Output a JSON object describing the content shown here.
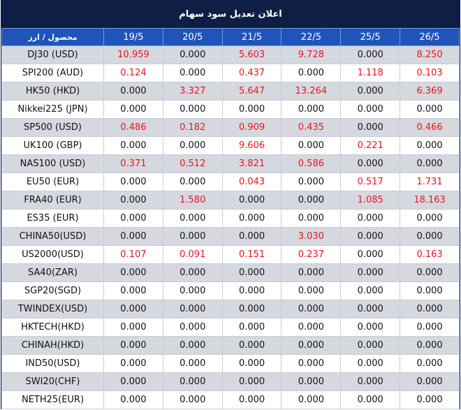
{
  "title": "اعلان تعدیل سود سهام",
  "table": {
    "headers": [
      "محصول / ارز",
      "19/5",
      "20/5",
      "21/5",
      "22/5",
      "25/5",
      "26/5"
    ],
    "rows": [
      {
        "symbol": "DJ30 (USD)",
        "values": [
          "10.959",
          "0.000",
          "5.603",
          "9.728",
          "0.000",
          "8.250"
        ],
        "highlight": [
          true,
          false,
          true,
          true,
          false,
          true
        ]
      },
      {
        "symbol": "SPI200 (AUD)",
        "values": [
          "0.124",
          "0.000",
          "0.437",
          "0.000",
          "1.118",
          "0.103"
        ],
        "highlight": [
          true,
          false,
          true,
          false,
          true,
          true
        ]
      },
      {
        "symbol": "HK50 (HKD)",
        "values": [
          "0.000",
          "3.327",
          "5.647",
          "13.264",
          "0.000",
          "6.369"
        ],
        "highlight": [
          false,
          true,
          true,
          true,
          false,
          true
        ]
      },
      {
        "symbol": "Nikkei225 (JPN)",
        "values": [
          "0.000",
          "0.000",
          "0.000",
          "0.000",
          "0.000",
          "0.000"
        ],
        "highlight": [
          false,
          false,
          false,
          false,
          false,
          false
        ]
      },
      {
        "symbol": "SP500 (USD)",
        "values": [
          "0.486",
          "0.182",
          "0.909",
          "0.435",
          "0.000",
          "0.466"
        ],
        "highlight": [
          true,
          true,
          true,
          true,
          false,
          true
        ]
      },
      {
        "symbol": "UK100 (GBP)",
        "values": [
          "0.000",
          "0.000",
          "9.606",
          "0.000",
          "0.221",
          "0.000"
        ],
        "highlight": [
          false,
          false,
          true,
          false,
          true,
          false
        ]
      },
      {
        "symbol": "NAS100 (USD)",
        "values": [
          "0.371",
          "0.512",
          "3.821",
          "0.586",
          "0.000",
          "0.000"
        ],
        "highlight": [
          true,
          true,
          true,
          true,
          false,
          false
        ]
      },
      {
        "symbol": "EU50 (EUR)",
        "values": [
          "0.000",
          "0.000",
          "0.043",
          "0.000",
          "0.517",
          "1.731"
        ],
        "highlight": [
          false,
          false,
          true,
          false,
          true,
          true
        ]
      },
      {
        "symbol": "FRA40 (EUR)",
        "values": [
          "0.000",
          "1.580",
          "0.000",
          "0.000",
          "1.085",
          "18.163"
        ],
        "highlight": [
          false,
          true,
          false,
          false,
          true,
          true
        ]
      },
      {
        "symbol": "ES35 (EUR)",
        "values": [
          "0.000",
          "0.000",
          "0.000",
          "0.000",
          "0.000",
          "0.000"
        ],
        "highlight": [
          false,
          false,
          false,
          false,
          false,
          false
        ]
      },
      {
        "symbol": "CHINA50(USD)",
        "values": [
          "0.000",
          "0.000",
          "0.000",
          "3.030",
          "0.000",
          "0.000"
        ],
        "highlight": [
          false,
          false,
          false,
          true,
          false,
          false
        ]
      },
      {
        "symbol": "US2000(USD)",
        "values": [
          "0.107",
          "0.091",
          "0.151",
          "0.237",
          "0.000",
          "0.163"
        ],
        "highlight": [
          true,
          true,
          true,
          true,
          false,
          true
        ]
      },
      {
        "symbol": "SA40(ZAR)",
        "values": [
          "0.000",
          "0.000",
          "0.000",
          "0.000",
          "0.000",
          "0.000"
        ],
        "highlight": [
          false,
          false,
          false,
          false,
          false,
          false
        ]
      },
      {
        "symbol": "SGP20(SGD)",
        "values": [
          "0.000",
          "0.000",
          "0.000",
          "0.000",
          "0.000",
          "0.000"
        ],
        "highlight": [
          false,
          false,
          false,
          false,
          false,
          false
        ]
      },
      {
        "symbol": "TWINDEX(USD)",
        "values": [
          "0.000",
          "0.000",
          "0.000",
          "0.000",
          "0.000",
          "0.000"
        ],
        "highlight": [
          false,
          false,
          false,
          false,
          false,
          false
        ]
      },
      {
        "symbol": "HKTECH(HKD)",
        "values": [
          "0.000",
          "0.000",
          "0.000",
          "0.000",
          "0.000",
          "0.000"
        ],
        "highlight": [
          false,
          false,
          false,
          false,
          false,
          false
        ]
      },
      {
        "symbol": "CHINAH(HKD)",
        "values": [
          "0.000",
          "0.000",
          "0.000",
          "0.000",
          "0.000",
          "0.000"
        ],
        "highlight": [
          false,
          false,
          false,
          false,
          false,
          false
        ]
      },
      {
        "symbol": "IND50(USD)",
        "values": [
          "0.000",
          "0.000",
          "0.000",
          "0.000",
          "0.000",
          "0.000"
        ],
        "highlight": [
          false,
          false,
          false,
          false,
          false,
          false
        ]
      },
      {
        "symbol": "SWI20(CHF)",
        "values": [
          "0.000",
          "0.000",
          "0.000",
          "0.000",
          "0.000",
          "0.000"
        ],
        "highlight": [
          false,
          false,
          false,
          false,
          false,
          false
        ]
      },
      {
        "symbol": "NETH25(EUR)",
        "values": [
          "0.000",
          "0.000",
          "0.000",
          "0.000",
          "0.000",
          "0.000"
        ],
        "highlight": [
          false,
          false,
          false,
          false,
          false,
          false
        ]
      }
    ]
  },
  "colors": {
    "title_bg": "#0e1e45",
    "header_bg": "#1f55b8",
    "shaded_row": "#d6d8e0",
    "highlight_text": "#e8161e",
    "normal_text": "#111111"
  }
}
